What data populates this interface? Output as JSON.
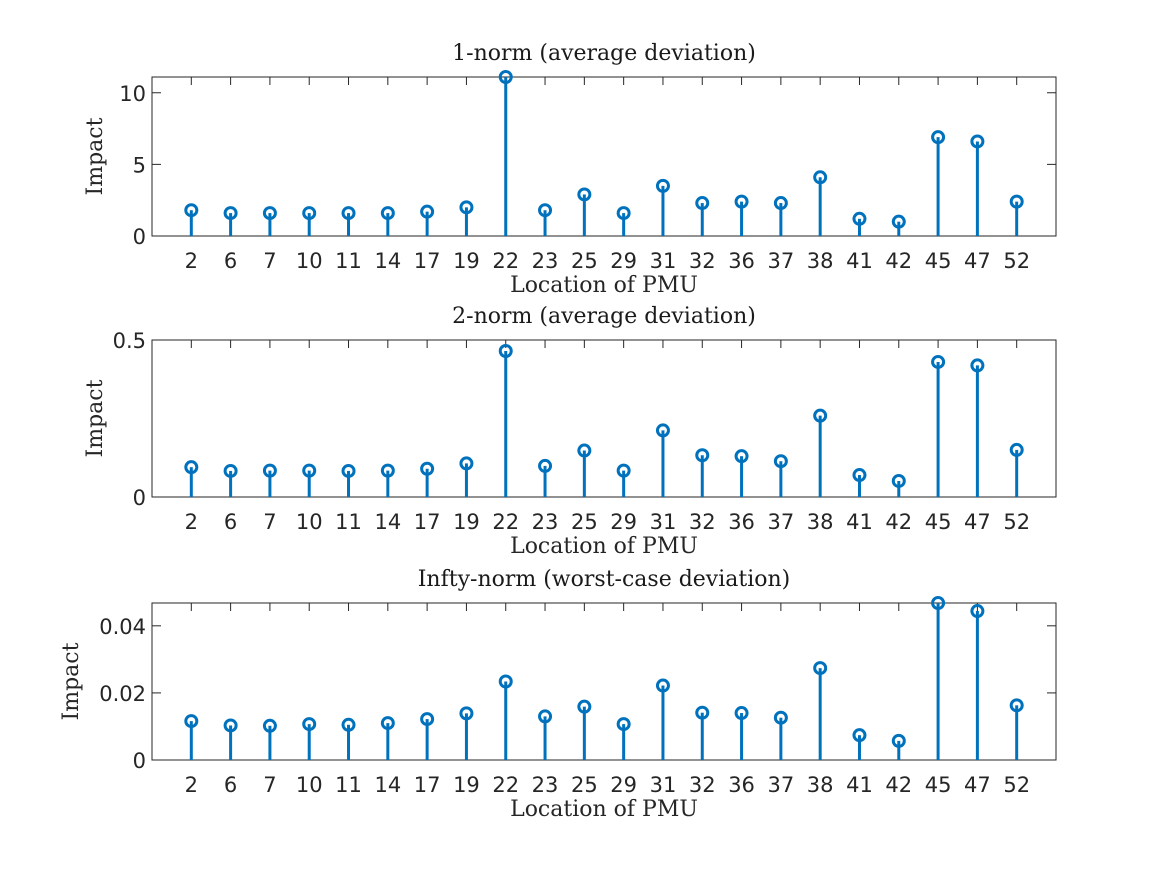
{
  "chart_data": [
    {
      "type": "stem",
      "title": "1-norm (average deviation)",
      "xlabel": "Location of PMU",
      "ylabel": "Impact",
      "categories": [
        "2",
        "6",
        "7",
        "10",
        "11",
        "14",
        "17",
        "19",
        "22",
        "23",
        "25",
        "29",
        "31",
        "32",
        "36",
        "37",
        "38",
        "41",
        "42",
        "45",
        "47",
        "52"
      ],
      "values": [
        1.8,
        1.6,
        1.6,
        1.6,
        1.6,
        1.6,
        1.7,
        2.0,
        11.1,
        1.8,
        2.9,
        1.6,
        3.5,
        2.3,
        2.4,
        2.3,
        4.1,
        1.2,
        1.0,
        6.9,
        6.6,
        2.4
      ],
      "ylim": [
        0,
        11.1
      ],
      "yticks": [
        0,
        5,
        10
      ],
      "ytick_labels": [
        "0",
        "5",
        "10"
      ],
      "grid": false,
      "color": "#0072BD"
    },
    {
      "type": "stem",
      "title": "2-norm (average deviation)",
      "xlabel": "Location of PMU",
      "ylabel": "Impact",
      "categories": [
        "2",
        "6",
        "7",
        "10",
        "11",
        "14",
        "17",
        "19",
        "22",
        "23",
        "25",
        "29",
        "31",
        "32",
        "36",
        "37",
        "38",
        "41",
        "42",
        "45",
        "47",
        "52"
      ],
      "values": [
        0.095,
        0.083,
        0.084,
        0.084,
        0.083,
        0.084,
        0.09,
        0.107,
        0.465,
        0.099,
        0.148,
        0.084,
        0.212,
        0.133,
        0.13,
        0.114,
        0.259,
        0.07,
        0.051,
        0.43,
        0.419,
        0.15
      ],
      "ylim": [
        0,
        0.5
      ],
      "yticks": [
        0,
        0.5
      ],
      "ytick_labels": [
        "0",
        "0.5"
      ],
      "grid": false,
      "color": "#0072BD"
    },
    {
      "type": "stem",
      "title": "Infty-norm (worst-case deviation)",
      "xlabel": "Location of PMU",
      "ylabel": "Impact",
      "categories": [
        "2",
        "6",
        "7",
        "10",
        "11",
        "14",
        "17",
        "19",
        "22",
        "23",
        "25",
        "29",
        "31",
        "32",
        "36",
        "37",
        "38",
        "41",
        "42",
        "45",
        "47",
        "52"
      ],
      "values": [
        0.0116,
        0.0103,
        0.0102,
        0.0107,
        0.0105,
        0.011,
        0.0122,
        0.0139,
        0.0234,
        0.013,
        0.0159,
        0.0107,
        0.0222,
        0.0141,
        0.014,
        0.0126,
        0.0274,
        0.0074,
        0.0057,
        0.0468,
        0.0444,
        0.0163
      ],
      "ylim": [
        0,
        0.0468
      ],
      "yticks": [
        0,
        0.02,
        0.04
      ],
      "ytick_labels": [
        "0",
        "0.02",
        "0.04"
      ],
      "grid": false,
      "color": "#0072BD"
    }
  ]
}
